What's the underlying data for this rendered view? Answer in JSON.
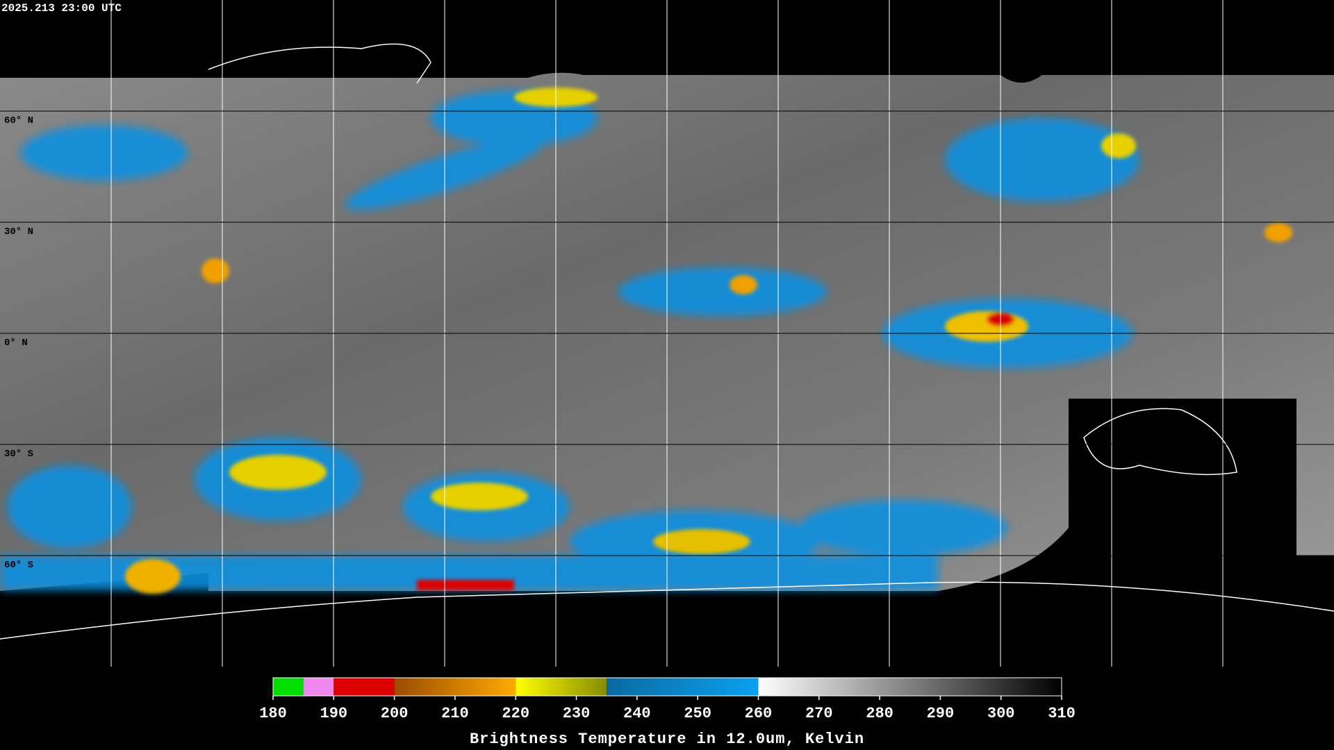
{
  "timestamp": "2025.213 23:00 UTC",
  "lat_labels": [
    "60° N",
    "30° N",
    "0° N",
    "30° S",
    "60° S"
  ],
  "colorbar": {
    "label": "Brightness Temperature in 12.0um, Kelvin",
    "range": [
      180,
      310
    ],
    "ticks": [
      180,
      190,
      200,
      210,
      220,
      230,
      240,
      250,
      260,
      270,
      280,
      290,
      300,
      310
    ],
    "segments": [
      {
        "from": 180,
        "to": 185,
        "colors": [
          "#00dd00",
          "#00dd00"
        ]
      },
      {
        "from": 185,
        "to": 190,
        "colors": [
          "#ee88ee",
          "#ee88ee"
        ]
      },
      {
        "from": 190,
        "to": 200,
        "colors": [
          "#dd0000",
          "#dd0000"
        ]
      },
      {
        "from": 200,
        "to": 220,
        "colors": [
          "#9a4c00",
          "#ffaa00"
        ]
      },
      {
        "from": 220,
        "to": 235,
        "colors": [
          "#ffff00",
          "#888c00"
        ]
      },
      {
        "from": 235,
        "to": 260,
        "colors": [
          "#0a6aa0",
          "#0aa0f0"
        ]
      },
      {
        "from": 260,
        "to": 310,
        "colors": [
          "#ffffff",
          "#000000"
        ]
      }
    ]
  }
}
